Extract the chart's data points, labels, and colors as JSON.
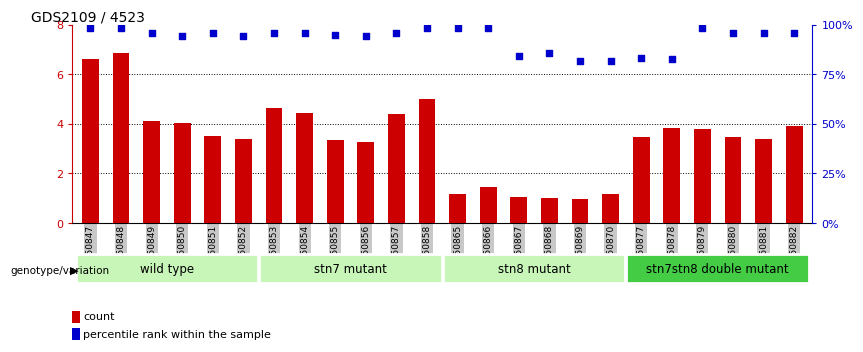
{
  "title": "GDS2109 / 4523",
  "samples": [
    "GSM50847",
    "GSM50848",
    "GSM50849",
    "GSM50850",
    "GSM50851",
    "GSM50852",
    "GSM50853",
    "GSM50854",
    "GSM50855",
    "GSM50856",
    "GSM50857",
    "GSM50858",
    "GSM50865",
    "GSM50866",
    "GSM50867",
    "GSM50868",
    "GSM50869",
    "GSM50870",
    "GSM50877",
    "GSM50878",
    "GSM50879",
    "GSM50880",
    "GSM50881",
    "GSM50882"
  ],
  "counts": [
    6.6,
    6.85,
    4.1,
    4.05,
    3.5,
    3.4,
    4.65,
    4.45,
    3.35,
    3.25,
    4.4,
    5.0,
    1.15,
    1.45,
    1.05,
    1.0,
    0.95,
    1.15,
    3.45,
    3.85,
    3.8,
    3.45,
    3.4,
    3.9
  ],
  "percentile_y_left": [
    7.85,
    7.85,
    7.65,
    7.55,
    7.68,
    7.55,
    7.68,
    7.68,
    7.58,
    7.55,
    7.68,
    7.85,
    7.85,
    7.85,
    6.75,
    6.85,
    6.55,
    6.55,
    6.65,
    6.6,
    7.85,
    7.68,
    7.68,
    7.68
  ],
  "groups": [
    {
      "label": "wild type",
      "start": 0,
      "end": 6
    },
    {
      "label": "stn7 mutant",
      "start": 6,
      "end": 12
    },
    {
      "label": "stn8 mutant",
      "start": 12,
      "end": 18
    },
    {
      "label": "stn7stn8 double mutant",
      "start": 18,
      "end": 24
    }
  ],
  "group_colors": [
    "#c8f5b8",
    "#c8f5b8",
    "#c8f5b8",
    "#44cc44"
  ],
  "bar_color": "#CC0000",
  "dot_color": "#0000CC",
  "ylim_left": [
    0,
    8
  ],
  "ylim_right": [
    0,
    100
  ],
  "yticks_left": [
    0,
    2,
    4,
    6,
    8
  ],
  "yticks_right": [
    0,
    25,
    50,
    75,
    100
  ],
  "grid_values": [
    2,
    4,
    6
  ],
  "tick_label_color_left": "#CC0000",
  "tick_label_color_right": "#0000CC",
  "genotype_label": "genotype/variation",
  "legend_count": "count",
  "legend_pct": "percentile rank within the sample",
  "xticklabel_bgcolor": "#c8c8c8"
}
